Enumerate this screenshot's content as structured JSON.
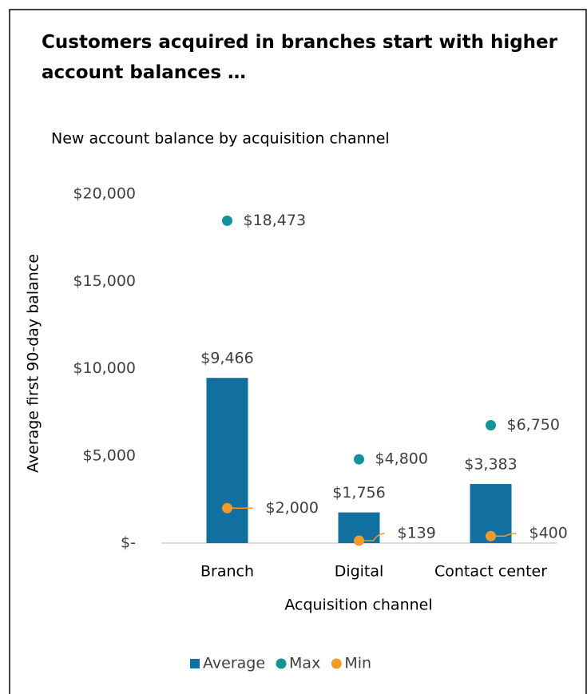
{
  "chart_data": {
    "type": "bar",
    "title": "Customers acquired in branches start with higher account balances …",
    "subtitle": "New account balance by acquisition channel",
    "x_label": "Acquisition channel",
    "y_label": "Average first 90-day balance",
    "categories": [
      "Branch",
      "Digital",
      "Contact center"
    ],
    "series": [
      {
        "name": "Average",
        "type": "bar",
        "color": "#1170a0",
        "values": [
          9466,
          1756,
          3383
        ],
        "value_labels": [
          "$9,466",
          "$1,756",
          "$3,383"
        ]
      },
      {
        "name": "Max",
        "type": "scatter",
        "color": "#12939a",
        "values": [
          18473,
          4800,
          6750
        ],
        "value_labels": [
          "$18,473",
          "$4,800",
          "$6,750"
        ]
      },
      {
        "name": "Min",
        "type": "scatter",
        "color": "#f39a2b",
        "values": [
          2000,
          139,
          400
        ],
        "value_labels": [
          "$2,000",
          "$139",
          "$400"
        ]
      }
    ],
    "ylim": [
      0,
      20000
    ],
    "yticks": [
      {
        "value": 0,
        "label": "$-"
      },
      {
        "value": 5000,
        "label": "$5,000"
      },
      {
        "value": 10000,
        "label": "$10,000"
      },
      {
        "value": 15000,
        "label": "$15,000"
      },
      {
        "value": 20000,
        "label": "$20,000"
      }
    ],
    "legend": "bottom"
  }
}
